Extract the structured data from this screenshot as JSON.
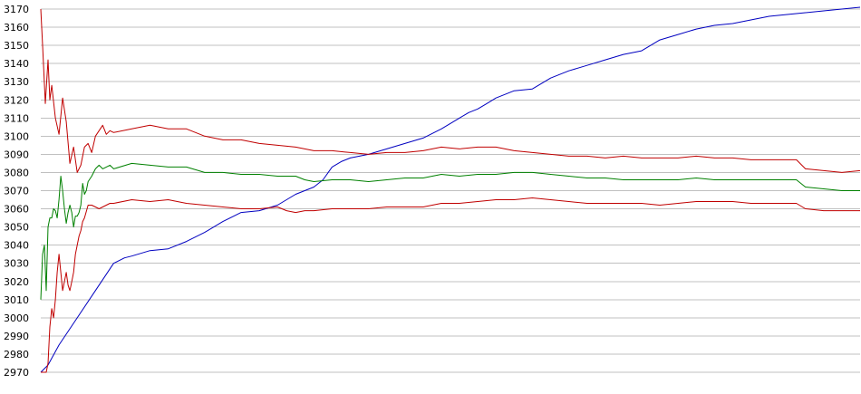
{
  "chart_data": {
    "type": "line",
    "title": "",
    "xlabel": "",
    "ylabel": "",
    "ylim": [
      2970,
      3170
    ],
    "yticks": [
      2970,
      2980,
      2990,
      3000,
      3010,
      3020,
      3030,
      3040,
      3050,
      3060,
      3070,
      3080,
      3090,
      3100,
      3110,
      3120,
      3130,
      3140,
      3150,
      3160,
      3170
    ],
    "xlim": [
      0,
      900
    ],
    "grid": true,
    "legend": "none",
    "colors": {
      "blue": "#0000c0",
      "green": "#008000",
      "red": "#c00000",
      "grid": "#c0c0c0"
    },
    "series": [
      {
        "color": "#0000c0",
        "x": [
          0,
          8,
          20,
          40,
          60,
          80,
          92,
          100,
          120,
          140,
          160,
          180,
          200,
          220,
          240,
          260,
          280,
          300,
          310,
          320,
          330,
          340,
          360,
          380,
          400,
          420,
          440,
          460,
          470,
          480,
          490,
          500,
          520,
          540,
          560,
          580,
          600,
          620,
          640,
          660,
          680,
          700,
          720,
          740,
          760,
          780,
          800,
          820,
          840,
          860,
          880,
          900
        ],
        "y": [
          2970,
          2974,
          2985,
          3000,
          3015,
          3030,
          3033,
          3034,
          3037,
          3038,
          3042,
          3047,
          3053,
          3058,
          3059,
          3062,
          3068,
          3072,
          3076,
          3083,
          3086,
          3088,
          3090,
          3093,
          3096,
          3099,
          3104,
          3110,
          3113,
          3115,
          3118,
          3121,
          3125,
          3126,
          3132,
          3136,
          3139,
          3142,
          3145,
          3147,
          3153,
          3156,
          3159,
          3161,
          3162,
          3164,
          3166,
          3167,
          3168,
          3169,
          3170,
          3171
        ]
      },
      {
        "color": "#c00000",
        "x": [
          0,
          2,
          5,
          8,
          10,
          12,
          16,
          20,
          24,
          28,
          32,
          36,
          40,
          44,
          48,
          52,
          56,
          60,
          64,
          68,
          72,
          76,
          80,
          100,
          120,
          140,
          160,
          180,
          200,
          220,
          240,
          260,
          280,
          300,
          320,
          340,
          360,
          380,
          400,
          420,
          440,
          460,
          480,
          500,
          520,
          540,
          560,
          580,
          600,
          620,
          640,
          660,
          680,
          700,
          720,
          740,
          760,
          780,
          800,
          820,
          830,
          840,
          860,
          880,
          900
        ],
        "y": [
          3170,
          3150,
          3118,
          3142,
          3120,
          3128,
          3110,
          3101,
          3121,
          3108,
          3085,
          3094,
          3080,
          3084,
          3094,
          3096,
          3091,
          3100,
          3103,
          3106,
          3101,
          3103,
          3102,
          3104,
          3106,
          3104,
          3104,
          3100,
          3098,
          3098,
          3096,
          3095,
          3094,
          3092,
          3092,
          3091,
          3090,
          3091,
          3091,
          3092,
          3094,
          3093,
          3094,
          3094,
          3092,
          3091,
          3090,
          3089,
          3089,
          3088,
          3089,
          3088,
          3088,
          3088,
          3089,
          3088,
          3088,
          3087,
          3087,
          3087,
          3087,
          3082,
          3081,
          3080,
          3081
        ]
      },
      {
        "color": "#008000",
        "x": [
          0,
          2,
          4,
          6,
          8,
          10,
          12,
          14,
          16,
          18,
          20,
          22,
          24,
          26,
          28,
          30,
          32,
          34,
          36,
          38,
          40,
          42,
          44,
          46,
          48,
          50,
          52,
          56,
          60,
          64,
          68,
          72,
          76,
          80,
          100,
          120,
          140,
          160,
          180,
          200,
          220,
          240,
          260,
          280,
          290,
          300,
          320,
          340,
          360,
          380,
          400,
          420,
          440,
          460,
          480,
          500,
          520,
          540,
          560,
          580,
          600,
          620,
          640,
          660,
          680,
          700,
          720,
          740,
          760,
          780,
          800,
          820,
          830,
          840,
          860,
          880,
          900
        ],
        "y": [
          3010,
          3035,
          3040,
          3015,
          3050,
          3055,
          3055,
          3060,
          3059,
          3055,
          3065,
          3078,
          3070,
          3060,
          3052,
          3058,
          3062,
          3058,
          3050,
          3056,
          3056,
          3058,
          3062,
          3074,
          3068,
          3070,
          3075,
          3078,
          3082,
          3084,
          3082,
          3083,
          3084,
          3082,
          3085,
          3084,
          3083,
          3083,
          3080,
          3080,
          3079,
          3079,
          3078,
          3078,
          3076,
          3075,
          3076,
          3076,
          3075,
          3076,
          3077,
          3077,
          3079,
          3078,
          3079,
          3079,
          3080,
          3080,
          3079,
          3078,
          3077,
          3077,
          3076,
          3076,
          3076,
          3076,
          3077,
          3076,
          3076,
          3076,
          3076,
          3076,
          3076,
          3072,
          3071,
          3070,
          3070
        ]
      },
      {
        "color": "#c00000",
        "x": [
          0,
          6,
          8,
          10,
          12,
          14,
          16,
          18,
          20,
          22,
          24,
          26,
          28,
          30,
          32,
          34,
          36,
          38,
          40,
          42,
          44,
          46,
          48,
          52,
          56,
          60,
          64,
          68,
          72,
          76,
          80,
          100,
          120,
          140,
          160,
          180,
          200,
          220,
          240,
          260,
          270,
          280,
          290,
          300,
          320,
          340,
          360,
          380,
          400,
          420,
          440,
          460,
          480,
          500,
          520,
          540,
          560,
          580,
          600,
          620,
          640,
          660,
          680,
          700,
          720,
          740,
          760,
          780,
          800,
          820,
          830,
          840,
          860,
          880,
          900
        ],
        "y": [
          2970,
          2970,
          2975,
          2995,
          3005,
          3000,
          3010,
          3025,
          3035,
          3025,
          3015,
          3020,
          3025,
          3018,
          3015,
          3020,
          3025,
          3035,
          3040,
          3045,
          3048,
          3053,
          3055,
          3062,
          3062,
          3061,
          3060,
          3061,
          3062,
          3063,
          3063,
          3065,
          3064,
          3065,
          3063,
          3062,
          3061,
          3060,
          3060,
          3061,
          3059,
          3058,
          3059,
          3059,
          3060,
          3060,
          3060,
          3061,
          3061,
          3061,
          3063,
          3063,
          3064,
          3065,
          3065,
          3066,
          3065,
          3064,
          3063,
          3063,
          3063,
          3063,
          3062,
          3063,
          3064,
          3064,
          3064,
          3063,
          3063,
          3063,
          3063,
          3060,
          3059,
          3059,
          3059
        ]
      }
    ]
  }
}
